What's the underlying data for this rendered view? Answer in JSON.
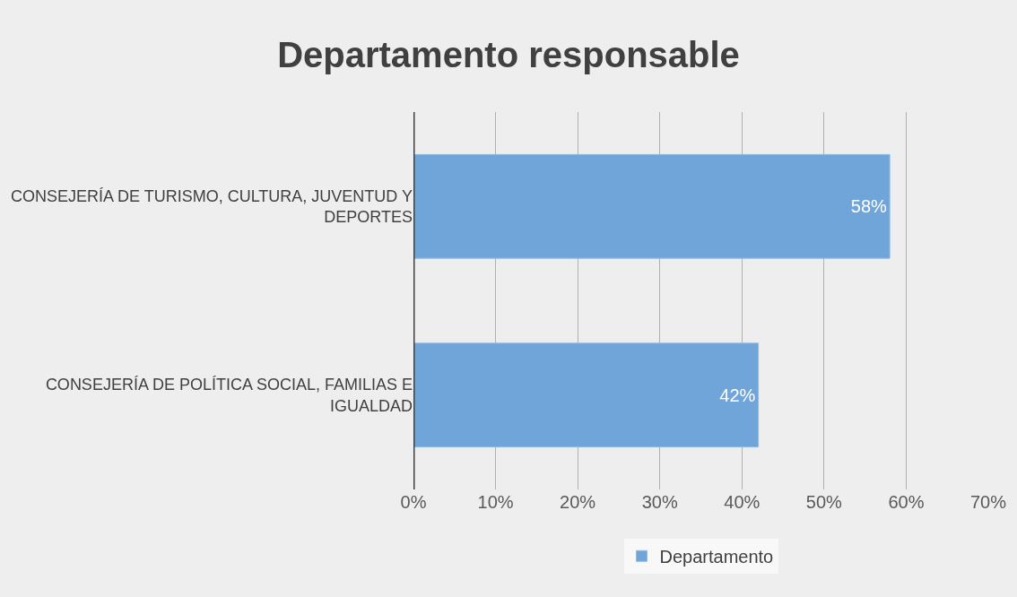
{
  "chart_data": {
    "type": "bar",
    "orientation": "horizontal",
    "title": "Departamento responsable",
    "categories": [
      "CONSEJERÍA DE TURISMO, CULTURA, JUVENTUD Y DEPORTES",
      "CONSEJERÍA DE POLÍTICA SOCIAL, FAMILIAS E IGUALDAD"
    ],
    "series": [
      {
        "name": "Departamento",
        "color": "#70a5d9",
        "values": [
          58,
          42
        ],
        "value_labels": [
          "58%",
          "42%"
        ]
      }
    ],
    "xlim": [
      0,
      70
    ],
    "xticks": [
      {
        "value": 0,
        "label": "0%"
      },
      {
        "value": 10,
        "label": "10%"
      },
      {
        "value": 20,
        "label": "20%"
      },
      {
        "value": 30,
        "label": "30%"
      },
      {
        "value": 40,
        "label": "40%"
      },
      {
        "value": 50,
        "label": "50%"
      },
      {
        "value": 60,
        "label": "60%"
      },
      {
        "value": 70,
        "label": "70%"
      }
    ],
    "grid": "x",
    "legend": "bottom"
  }
}
